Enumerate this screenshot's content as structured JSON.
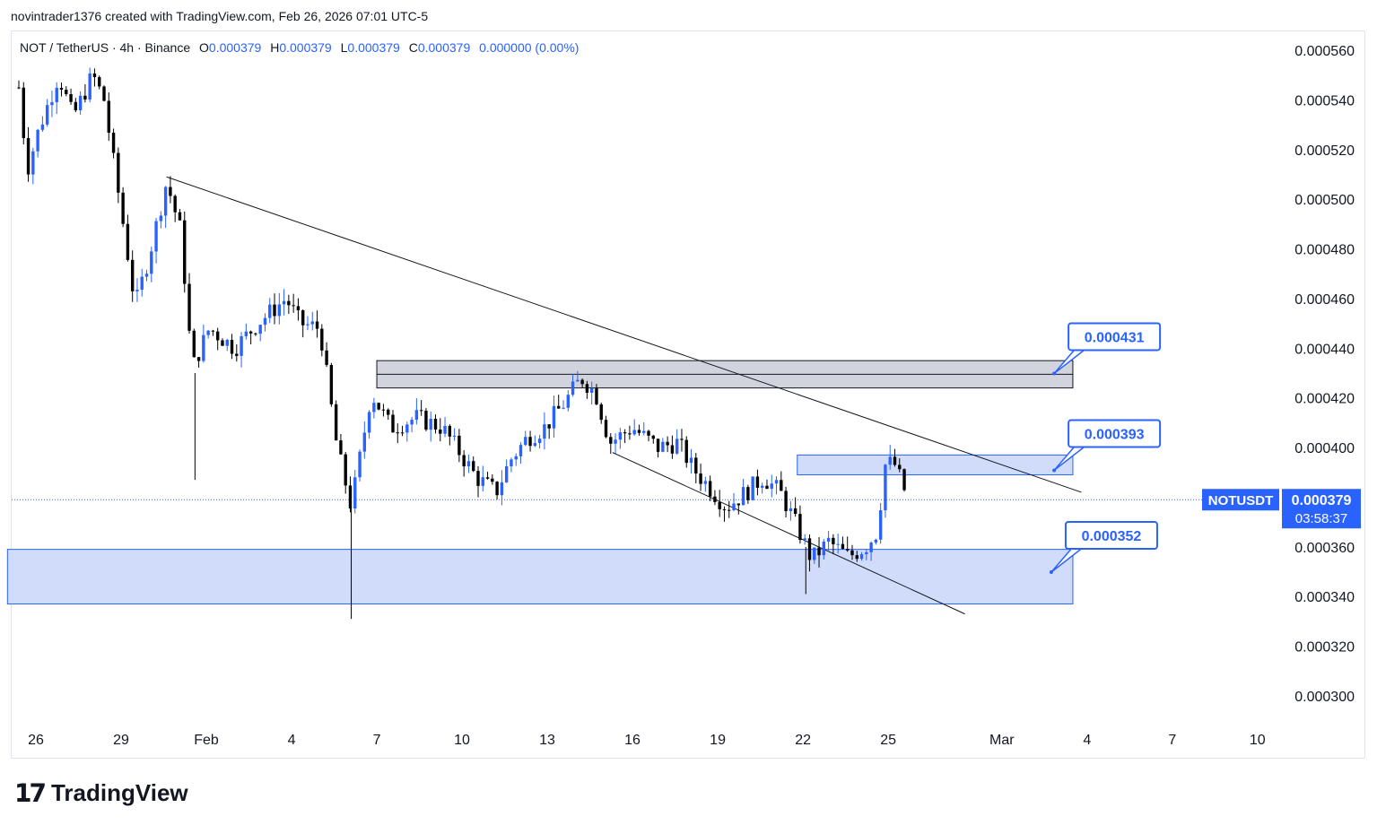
{
  "header": {
    "text": "novintrader1376 created with TradingView.com, Feb 26, 2026 07:01 UTC-5"
  },
  "legend": {
    "symbol": "NOT / TetherUS · 4h · Binance",
    "o_label": "O",
    "o_value": "0.000379",
    "h_label": "H",
    "h_value": "0.000379",
    "l_label": "L",
    "l_value": "0.000379",
    "c_label": "C",
    "c_value": "0.000379",
    "change": "0.000000 (0.00%)"
  },
  "brand": {
    "name": "TradingView"
  },
  "colors": {
    "bull": "#2962ff",
    "bear": "#000000",
    "zone_fill": "#d1dcfb",
    "zone_stroke": "#2962ff",
    "resistance_fill": "#d1d4dc"
  },
  "chart_data": {
    "type": "candlestick",
    "symbol": "NOTUSDT",
    "interval": "4h",
    "last_price": "0.000379",
    "countdown": "03:58:37",
    "y_axis": {
      "ticks": [
        "0.000560",
        "0.000540",
        "0.000520",
        "0.000500",
        "0.000480",
        "0.000460",
        "0.000440",
        "0.000420",
        "0.000400",
        "0.000380",
        "0.000360",
        "0.000340",
        "0.000320",
        "0.000300"
      ],
      "range": [
        0.00029,
        0.000567
      ]
    },
    "x_axis": {
      "ticks": [
        {
          "label": "26",
          "day": 26
        },
        {
          "label": "29",
          "day": 29
        },
        {
          "label": "Feb",
          "day": 32
        },
        {
          "label": "4",
          "day": 35
        },
        {
          "label": "7",
          "day": 38
        },
        {
          "label": "10",
          "day": 41
        },
        {
          "label": "13",
          "day": 44
        },
        {
          "label": "16",
          "day": 47
        },
        {
          "label": "19",
          "day": 50
        },
        {
          "label": "22",
          "day": 53
        },
        {
          "label": "25",
          "day": 56
        },
        {
          "label": "Mar",
          "day": 60
        },
        {
          "label": "4",
          "day": 63
        },
        {
          "label": "7",
          "day": 66
        },
        {
          "label": "10",
          "day": 69
        }
      ]
    },
    "path": [
      [
        25.4,
        0.000545
      ],
      [
        25.7,
        0.000512
      ],
      [
        26.1,
        0.000528
      ],
      [
        26.8,
        0.00055
      ],
      [
        27.3,
        0.000533
      ],
      [
        28.0,
        0.00055
      ],
      [
        28.4,
        0.00054
      ],
      [
        28.8,
        0.00051
      ],
      [
        29.1,
        0.000488
      ],
      [
        29.5,
        0.000457
      ],
      [
        30.0,
        0.000478
      ],
      [
        30.6,
        0.000507
      ],
      [
        31.1,
        0.000487
      ],
      [
        31.5,
        0.000432
      ],
      [
        32.1,
        0.000448
      ],
      [
        33.0,
        0.00044
      ],
      [
        33.8,
        0.00045
      ],
      [
        34.8,
        0.00046
      ],
      [
        35.3,
        0.00045
      ],
      [
        36.0,
        0.000448
      ],
      [
        36.6,
        0.0004
      ],
      [
        37.1,
        0.000376
      ],
      [
        37.8,
        0.000422
      ],
      [
        38.5,
        0.000408
      ],
      [
        39.4,
        0.000412
      ],
      [
        40.3,
        0.000408
      ],
      [
        40.8,
        0.0004
      ],
      [
        41.5,
        0.000388
      ],
      [
        42.2,
        0.000382
      ],
      [
        42.7,
        0.000395
      ],
      [
        43.3,
        0.000404
      ],
      [
        43.9,
        0.000408
      ],
      [
        44.6,
        0.000418
      ],
      [
        45.2,
        0.000428
      ],
      [
        45.7,
        0.000422
      ],
      [
        46.2,
        0.000402
      ],
      [
        47.0,
        0.000408
      ],
      [
        47.9,
        0.0004
      ],
      [
        48.6,
        0.000402
      ],
      [
        49.1,
        0.000392
      ],
      [
        49.7,
        0.000384
      ],
      [
        50.3,
        0.000376
      ],
      [
        51.0,
        0.000382
      ],
      [
        51.6,
        0.000388
      ],
      [
        52.2,
        0.000382
      ],
      [
        52.8,
        0.000368
      ],
      [
        53.3,
        0.000355
      ],
      [
        53.9,
        0.000362
      ],
      [
        54.6,
        0.000356
      ],
      [
        55.2,
        0.00036
      ],
      [
        55.6,
        0.000366
      ],
      [
        55.9,
        0.000393
      ],
      [
        56.2,
        0.000394
      ],
      [
        56.5,
        0.000385
      ],
      [
        56.7,
        0.000379
      ]
    ],
    "zones": [
      {
        "name": "resistance-zone",
        "x0": 38,
        "x1": 62.5,
        "y0": 0.000424,
        "y1": 0.000435,
        "mid": 0.0004295
      },
      {
        "name": "mid-zone",
        "x0": 52.8,
        "x1": 62.5,
        "y0": 0.000389,
        "y1": 0.000397
      },
      {
        "name": "support-zone",
        "x0": 25.0,
        "x1": 62.5,
        "y0": 0.000337,
        "y1": 0.000359
      }
    ],
    "trendlines": [
      {
        "name": "upper-trendline",
        "x0": 30.6,
        "y0": 0.000509,
        "x1": 62.8,
        "y1": 0.000382
      },
      {
        "name": "lower-trendline",
        "x0": 46.3,
        "y0": 0.000398,
        "x1": 58.7,
        "y1": 0.000333
      }
    ],
    "price_labels": [
      {
        "text": "0.000431",
        "x": 61.4,
        "y": 0.000432
      },
      {
        "text": "0.000393",
        "x": 61.4,
        "y": 0.000393
      },
      {
        "text": "0.000352",
        "x": 61.3,
        "y": 0.000352
      }
    ]
  }
}
